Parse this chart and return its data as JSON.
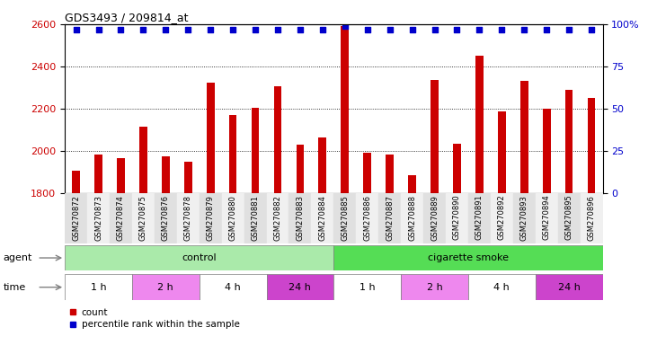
{
  "title": "GDS3493 / 209814_at",
  "samples": [
    "GSM270872",
    "GSM270873",
    "GSM270874",
    "GSM270875",
    "GSM270876",
    "GSM270878",
    "GSM270879",
    "GSM270880",
    "GSM270881",
    "GSM270882",
    "GSM270883",
    "GSM270884",
    "GSM270885",
    "GSM270886",
    "GSM270887",
    "GSM270888",
    "GSM270889",
    "GSM270890",
    "GSM270891",
    "GSM270892",
    "GSM270893",
    "GSM270894",
    "GSM270895",
    "GSM270896"
  ],
  "counts": [
    1905,
    1985,
    1968,
    2115,
    1975,
    1948,
    2325,
    2170,
    2205,
    2305,
    2030,
    2065,
    2590,
    1990,
    1985,
    1885,
    2335,
    2035,
    2450,
    2185,
    2330,
    2200,
    2290,
    2250
  ],
  "percentile_ranks": [
    97,
    97,
    97,
    97,
    97,
    97,
    97,
    97,
    97,
    97,
    97,
    97,
    99,
    97,
    97,
    97,
    97,
    97,
    97,
    97,
    97,
    97,
    97,
    97
  ],
  "bar_color": "#cc0000",
  "dot_color": "#0000cc",
  "ylim_left": [
    1800,
    2600
  ],
  "ylim_right": [
    0,
    100
  ],
  "yticks_left": [
    1800,
    2000,
    2200,
    2400,
    2600
  ],
  "yticks_right": [
    0,
    25,
    50,
    75,
    100
  ],
  "agent_groups": [
    {
      "label": "control",
      "start": 0,
      "end": 12,
      "color": "#aaeaaa"
    },
    {
      "label": "cigarette smoke",
      "start": 12,
      "end": 24,
      "color": "#55dd55"
    }
  ],
  "time_groups": [
    {
      "label": "1 h",
      "start": 0,
      "end": 3,
      "color": "#ffffff"
    },
    {
      "label": "2 h",
      "start": 3,
      "end": 6,
      "color": "#ee88ee"
    },
    {
      "label": "4 h",
      "start": 6,
      "end": 9,
      "color": "#ffffff"
    },
    {
      "label": "24 h",
      "start": 9,
      "end": 12,
      "color": "#cc44cc"
    },
    {
      "label": "1 h",
      "start": 12,
      "end": 15,
      "color": "#ffffff"
    },
    {
      "label": "2 h",
      "start": 15,
      "end": 18,
      "color": "#ee88ee"
    },
    {
      "label": "4 h",
      "start": 18,
      "end": 21,
      "color": "#ffffff"
    },
    {
      "label": "24 h",
      "start": 21,
      "end": 24,
      "color": "#cc44cc"
    }
  ],
  "legend_count_label": "count",
  "legend_pct_label": "percentile rank within the sample"
}
